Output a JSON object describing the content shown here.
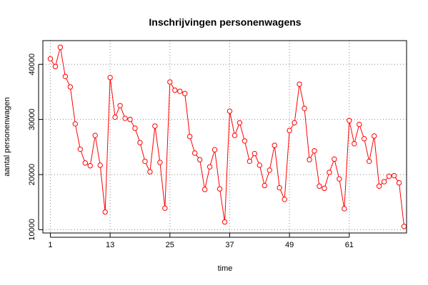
{
  "chart_data": {
    "type": "line",
    "title": "Inschrijvingen personenwagens",
    "xlabel": "time",
    "ylabel": "aantal personenwagen",
    "x_ticks": [
      1,
      13,
      25,
      37,
      49,
      61
    ],
    "y_ticks": [
      10000,
      20000,
      30000,
      40000
    ],
    "xlim": [
      -0.5,
      72.5
    ],
    "ylim": [
      9400,
      44300
    ],
    "grid": true,
    "color": "#ff0000",
    "series": [
      {
        "x": [
          1,
          2,
          3,
          4,
          5,
          6,
          7,
          8,
          9,
          10,
          11,
          12,
          13,
          14,
          15,
          16,
          17,
          18,
          19,
          20,
          21,
          22,
          23,
          24,
          25,
          26,
          27,
          28,
          29,
          30,
          31,
          32,
          33,
          34,
          35,
          36,
          37,
          38,
          39,
          40,
          41,
          42,
          43,
          44,
          45,
          46,
          47,
          48,
          49,
          50,
          51,
          52,
          53,
          54,
          55,
          56,
          57,
          58,
          59,
          60,
          61,
          62,
          63,
          64,
          65,
          66,
          67,
          68,
          69,
          70,
          71,
          72
        ],
        "values": [
          41000,
          39600,
          43100,
          37800,
          35900,
          29200,
          24600,
          22100,
          21600,
          27100,
          21700,
          13200,
          37600,
          30400,
          32500,
          30200,
          30000,
          28400,
          25800,
          22400,
          20500,
          28800,
          22200,
          13900,
          36800,
          35300,
          35100,
          34700,
          26900,
          23900,
          22700,
          17300,
          21400,
          24500,
          17400,
          11400,
          31500,
          27100,
          29400,
          26100,
          22400,
          23800,
          21700,
          18000,
          20800,
          25300,
          17600,
          15500,
          28000,
          29400,
          36400,
          32000,
          22700,
          24300,
          17900,
          17500,
          20400,
          22800,
          19200,
          13800,
          29800,
          25600,
          29100,
          26500,
          22400,
          27000,
          17900,
          18700,
          19700,
          19800,
          18500,
          10600
        ]
      }
    ]
  }
}
